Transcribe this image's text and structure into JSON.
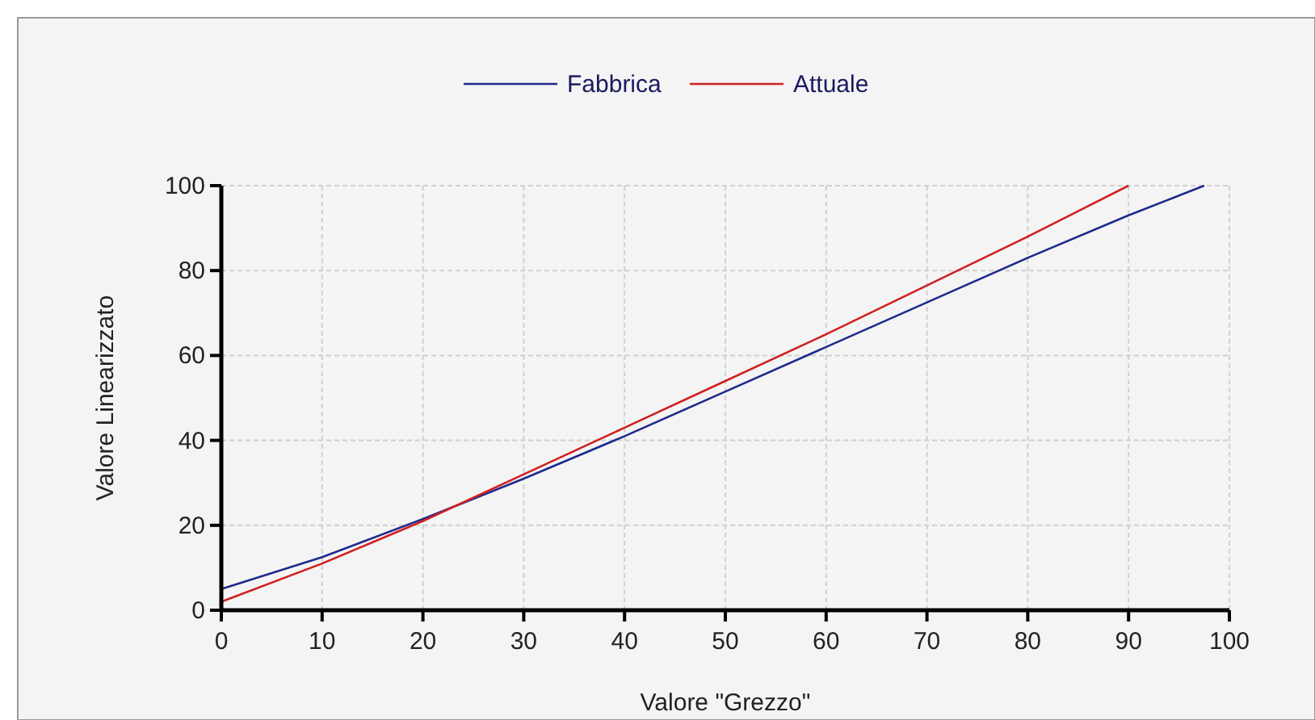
{
  "chart_data": {
    "type": "line",
    "xlabel": "Valore \"Grezzo\"",
    "ylabel": "Valore Linearizzato",
    "xlim": [
      0,
      100
    ],
    "ylim": [
      0,
      100
    ],
    "xticks": [
      0,
      10,
      20,
      30,
      40,
      50,
      60,
      70,
      80,
      90,
      100
    ],
    "yticks": [
      0,
      20,
      40,
      60,
      80,
      100
    ],
    "grid": true,
    "legend": "top",
    "line_style": "solid",
    "series": [
      {
        "name": "Fabbrica",
        "color": "#1f2a8c",
        "x": [
          0,
          10,
          20,
          30,
          40,
          50,
          60,
          70,
          80,
          90,
          97.5
        ],
        "values": [
          5,
          12.5,
          21.5,
          31,
          41,
          51.5,
          62,
          72.5,
          83,
          93,
          100
        ]
      },
      {
        "name": "Attuale",
        "color": "#d02020",
        "x": [
          0,
          10,
          20,
          30,
          40,
          50,
          60,
          70,
          80,
          90
        ],
        "values": [
          2,
          11,
          21,
          32,
          43,
          54,
          65,
          76.5,
          88,
          100
        ]
      }
    ]
  }
}
